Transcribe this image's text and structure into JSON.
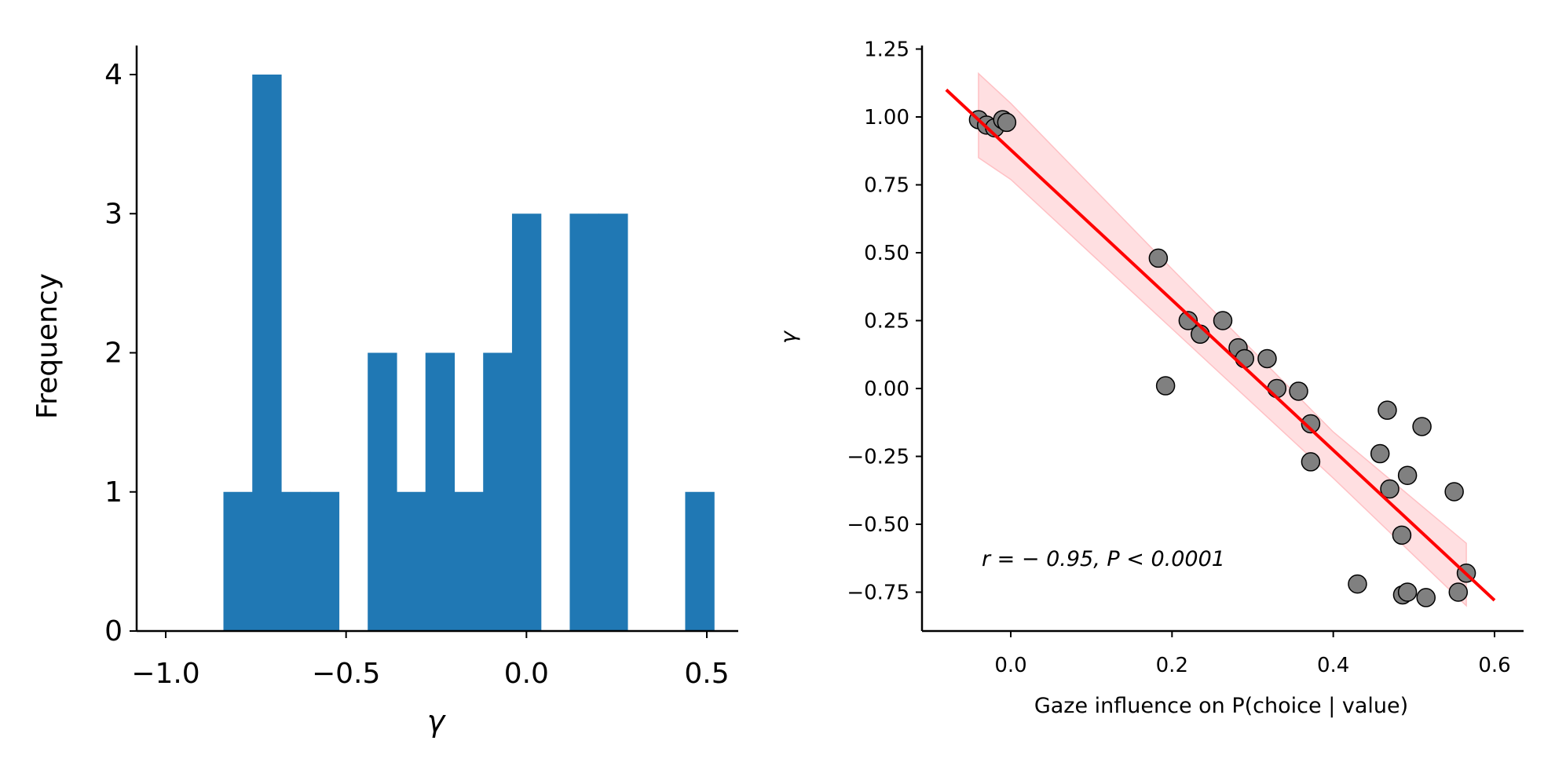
{
  "colors": {
    "bar": "#2078b4",
    "point_fill": "#808080",
    "point_edge": "#000000",
    "fit_line": "#ff0000",
    "ci_band": "#ffc0c4",
    "axis": "#000000"
  },
  "chart_data": [
    {
      "type": "bar",
      "subtype": "histogram",
      "xlabel": "γ",
      "ylabel": "Frequency",
      "xlim": [
        -1.1,
        0.58
      ],
      "ylim": [
        0,
        4.2
      ],
      "xticks": [
        -1.0,
        -0.5,
        0.0,
        0.5
      ],
      "xtick_labels": [
        "−1.0",
        "−0.5",
        "0.0",
        "0.5"
      ],
      "yticks": [
        0,
        1,
        2,
        3,
        4
      ],
      "ytick_labels": [
        "0",
        "1",
        "2",
        "3",
        "4"
      ],
      "bin_edges": [
        -0.84,
        -0.76,
        -0.68,
        -0.6,
        -0.52,
        -0.44,
        -0.36,
        -0.28,
        -0.2,
        -0.12,
        -0.04,
        0.04,
        0.12,
        0.2,
        0.28,
        0.36,
        0.44,
        0.52
      ],
      "counts": [
        1,
        4,
        1,
        1,
        0,
        2,
        1,
        2,
        1,
        2,
        3,
        0,
        3,
        3,
        0,
        0,
        1
      ],
      "grid": false
    },
    {
      "type": "scatter",
      "xlabel": "Gaze influence on P(choice | value)",
      "ylabel": "γ",
      "xlim": [
        -0.11,
        0.63
      ],
      "ylim": [
        -0.9,
        1.25
      ],
      "xticks": [
        0.0,
        0.2,
        0.4,
        0.6
      ],
      "xtick_labels": [
        "0.0",
        "0.2",
        "0.4",
        "0.6"
      ],
      "yticks": [
        -0.75,
        -0.5,
        -0.25,
        0.0,
        0.25,
        0.5,
        0.75,
        1.0,
        1.25
      ],
      "ytick_labels": [
        "−0.75",
        "−0.50",
        "−0.25",
        "0.00",
        "0.25",
        "0.50",
        "0.75",
        "1.00",
        "1.25"
      ],
      "points": [
        {
          "x": -0.04,
          "y": 0.99
        },
        {
          "x": -0.03,
          "y": 0.97
        },
        {
          "x": -0.02,
          "y": 0.96
        },
        {
          "x": -0.01,
          "y": 0.99
        },
        {
          "x": -0.005,
          "y": 0.98
        },
        {
          "x": 0.183,
          "y": 0.48
        },
        {
          "x": 0.192,
          "y": 0.01
        },
        {
          "x": 0.22,
          "y": 0.25
        },
        {
          "x": 0.235,
          "y": 0.2
        },
        {
          "x": 0.263,
          "y": 0.25
        },
        {
          "x": 0.282,
          "y": 0.15
        },
        {
          "x": 0.29,
          "y": 0.11
        },
        {
          "x": 0.318,
          "y": 0.11
        },
        {
          "x": 0.33,
          "y": 0.0
        },
        {
          "x": 0.357,
          "y": -0.01
        },
        {
          "x": 0.372,
          "y": -0.13
        },
        {
          "x": 0.372,
          "y": -0.27
        },
        {
          "x": 0.43,
          "y": -0.72
        },
        {
          "x": 0.458,
          "y": -0.24
        },
        {
          "x": 0.467,
          "y": -0.08
        },
        {
          "x": 0.47,
          "y": -0.37
        },
        {
          "x": 0.485,
          "y": -0.54
        },
        {
          "x": 0.486,
          "y": -0.76
        },
        {
          "x": 0.492,
          "y": -0.75
        },
        {
          "x": 0.492,
          "y": -0.32
        },
        {
          "x": 0.51,
          "y": -0.14
        },
        {
          "x": 0.515,
          "y": -0.77
        },
        {
          "x": 0.55,
          "y": -0.38
        },
        {
          "x": 0.555,
          "y": -0.75
        },
        {
          "x": 0.565,
          "y": -0.68
        }
      ],
      "fit_line": {
        "x": [
          -0.08,
          0.6
        ],
        "y": [
          1.1,
          -0.78
        ]
      },
      "ci_band": {
        "x": [
          -0.04,
          0.0,
          0.2,
          0.4,
          0.565
        ],
        "lower": [
          0.85,
          0.77,
          0.22,
          -0.33,
          -0.8
        ],
        "upper": [
          1.16,
          1.05,
          0.44,
          -0.16,
          -0.57
        ]
      },
      "annotation": "r = − 0.95, P < 0.0001",
      "grid": false
    }
  ]
}
